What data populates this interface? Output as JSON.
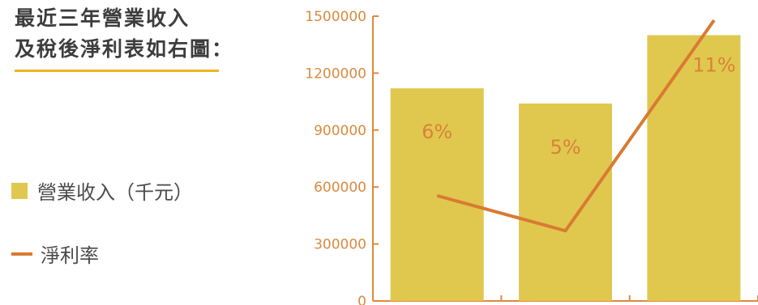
{
  "heading": {
    "line1": "最近三年營業收入",
    "line2": "及稅後淨利表如右圖："
  },
  "legend": [
    {
      "name": "營業收入（千元）",
      "type": "bar"
    },
    {
      "name": "淨利率",
      "type": "line"
    }
  ],
  "colors": {
    "bar": "#e0c84f",
    "line": "#d97a33",
    "axis": "#e08a3a",
    "tick_text": "#d98a3f",
    "heading": "#3d3d3d",
    "underline": "#f0b31c"
  },
  "chart_data": {
    "type": "bar",
    "categories": [
      "",
      "",
      ""
    ],
    "ylim": [
      0,
      1500000
    ],
    "yticks": [
      0,
      300000,
      600000,
      900000,
      1200000,
      1500000
    ],
    "ytick_labels": [
      "0",
      "300000",
      "600000",
      "900000",
      "1200000",
      "1500000"
    ],
    "series": [
      {
        "name": "營業收入（千元）",
        "type": "bar",
        "values": [
          1120000,
          1040000,
          1400000
        ],
        "labels": [
          "6%",
          "5%",
          "11%"
        ]
      },
      {
        "name": "淨利率",
        "type": "line",
        "values": [
          6,
          5,
          11
        ]
      }
    ],
    "grid": false,
    "legend_position": "left"
  }
}
